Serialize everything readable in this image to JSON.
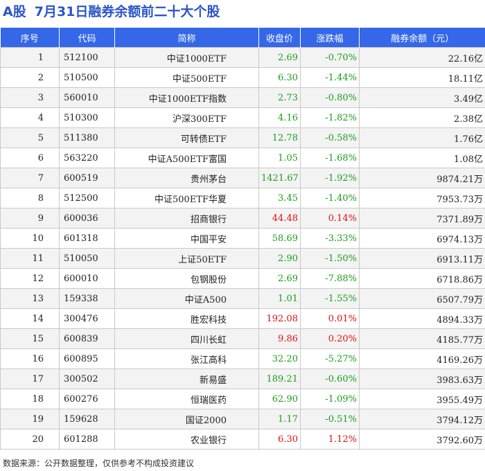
{
  "title": {
    "tag": "A股",
    "text": "7月31日融券余额前二十大个股"
  },
  "table": {
    "headers": [
      "序号",
      "代码",
      "简称",
      "收盘价",
      "涨跌幅",
      "融券余额（元）"
    ],
    "rows": [
      [
        "1",
        "512100",
        "中证1000ETF",
        "2.69",
        "-0.70%",
        "22.16亿"
      ],
      [
        "2",
        "510500",
        "中证500ETF",
        "6.30",
        "-1.44%",
        "18.11亿"
      ],
      [
        "3",
        "560010",
        "中证1000ETF指数",
        "2.73",
        "-0.80%",
        "3.49亿"
      ],
      [
        "4",
        "510300",
        "沪深300ETF",
        "4.16",
        "-1.82%",
        "2.38亿"
      ],
      [
        "5",
        "511380",
        "可转债ETF",
        "12.78",
        "-0.58%",
        "1.76亿"
      ],
      [
        "6",
        "563220",
        "中证A500ETF富国",
        "1.05",
        "-1.68%",
        "1.08亿"
      ],
      [
        "7",
        "600519",
        "贵州茅台",
        "1421.67",
        "-1.92%",
        "9874.21万"
      ],
      [
        "8",
        "512500",
        "中证500ETF华夏",
        "3.45",
        "-1.40%",
        "7953.73万"
      ],
      [
        "9",
        "600036",
        "招商银行",
        "44.48",
        "0.14%",
        "7371.89万"
      ],
      [
        "10",
        "601318",
        "中国平安",
        "58.69",
        "-3.33%",
        "6974.13万"
      ],
      [
        "11",
        "510050",
        "上证50ETF",
        "2.90",
        "-1.50%",
        "6913.11万"
      ],
      [
        "12",
        "600010",
        "包钢股份",
        "2.69",
        "-7.88%",
        "6718.86万"
      ],
      [
        "13",
        "159338",
        "中证A500",
        "1.01",
        "-1.55%",
        "6507.79万"
      ],
      [
        "14",
        "300476",
        "胜宏科技",
        "192.08",
        "0.01%",
        "4894.33万"
      ],
      [
        "15",
        "600839",
        "四川长虹",
        "9.86",
        "0.20%",
        "4185.77万"
      ],
      [
        "16",
        "600895",
        "张江高科",
        "32.20",
        "-5.27%",
        "4169.26万"
      ],
      [
        "17",
        "300502",
        "新易盛",
        "189.21",
        "-0.60%",
        "3983.63万"
      ],
      [
        "18",
        "600276",
        "恒瑞医药",
        "62.90",
        "-1.09%",
        "3955.49万"
      ],
      [
        "19",
        "159628",
        "国证2000",
        "1.17",
        "-0.51%",
        "3794.12万"
      ],
      [
        "20",
        "601288",
        "农业银行",
        "6.30",
        "1.12%",
        "3792.60万"
      ]
    ]
  },
  "colors": {
    "header_bg": "#3468e8",
    "title": "#2a55c9",
    "up": "#e01010",
    "down": "#1a9e1a"
  },
  "source": "数据来源：公开数据整理，仅供参考不构成投资建议"
}
